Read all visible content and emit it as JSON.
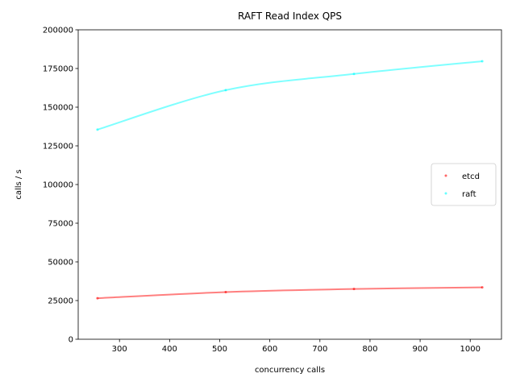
{
  "chart_data": {
    "type": "scatter",
    "title": "RAFT Read Index QPS",
    "x_label": "concurrency calls",
    "y_label": "calls / s",
    "x": [
      256,
      512,
      768,
      1024
    ],
    "series": [
      {
        "name": "etcd",
        "color": "#ff0000",
        "values": [
          26500,
          30500,
          32500,
          33500
        ]
      },
      {
        "name": "raft",
        "color": "#00ffff",
        "values": [
          135500,
          161000,
          171500,
          179700
        ]
      }
    ],
    "xlim": [
      217.6,
      1062.4
    ],
    "xticks": [
      300,
      400,
      500,
      600,
      700,
      800,
      900,
      1000
    ],
    "ylim": [
      0,
      200000
    ],
    "yticks": [
      0,
      25000,
      50000,
      75000,
      100000,
      125000,
      150000,
      175000,
      200000
    ],
    "legend": "center right"
  }
}
